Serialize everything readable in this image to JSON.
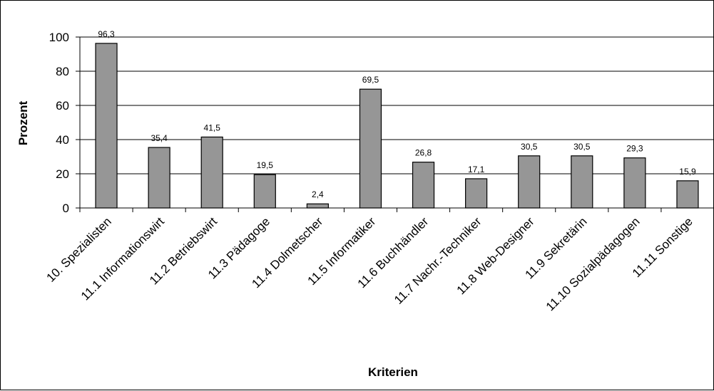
{
  "chart_data": {
    "type": "bar",
    "categories": [
      "10. Spezialisten",
      "11.1 Informationswirt",
      "11.2 Betriebswirt",
      "11.3 Pädagoge",
      "11.4 Dolmetscher",
      "11.5 Informatiker",
      "11.6 Buchhändler",
      "11.7 Nachr.-Techniker",
      "11.8 Web-Designer",
      "11.9 Sekretärin",
      "11.10 Sozialpädagogen",
      "11.11 Sonstige"
    ],
    "values": [
      96.3,
      35.4,
      41.5,
      19.5,
      2.4,
      69.5,
      26.8,
      17.1,
      30.5,
      30.5,
      29.3,
      15.9
    ],
    "value_labels": [
      "96,3",
      "35,4",
      "41,5",
      "19,5",
      "2,4",
      "69,5",
      "26,8",
      "17,1",
      "30,5",
      "30,5",
      "29,3",
      "15,9"
    ],
    "title": "",
    "xlabel": "Kriterien",
    "ylabel": "Prozent",
    "ylim": [
      0,
      100
    ],
    "yticks": [
      0,
      20,
      40,
      60,
      80,
      100
    ],
    "grid": true,
    "legend": "none",
    "colors": {
      "bar_fill": "#969696",
      "bar_stroke": "#000000",
      "grid": "#000000",
      "frame": "#000000"
    }
  }
}
